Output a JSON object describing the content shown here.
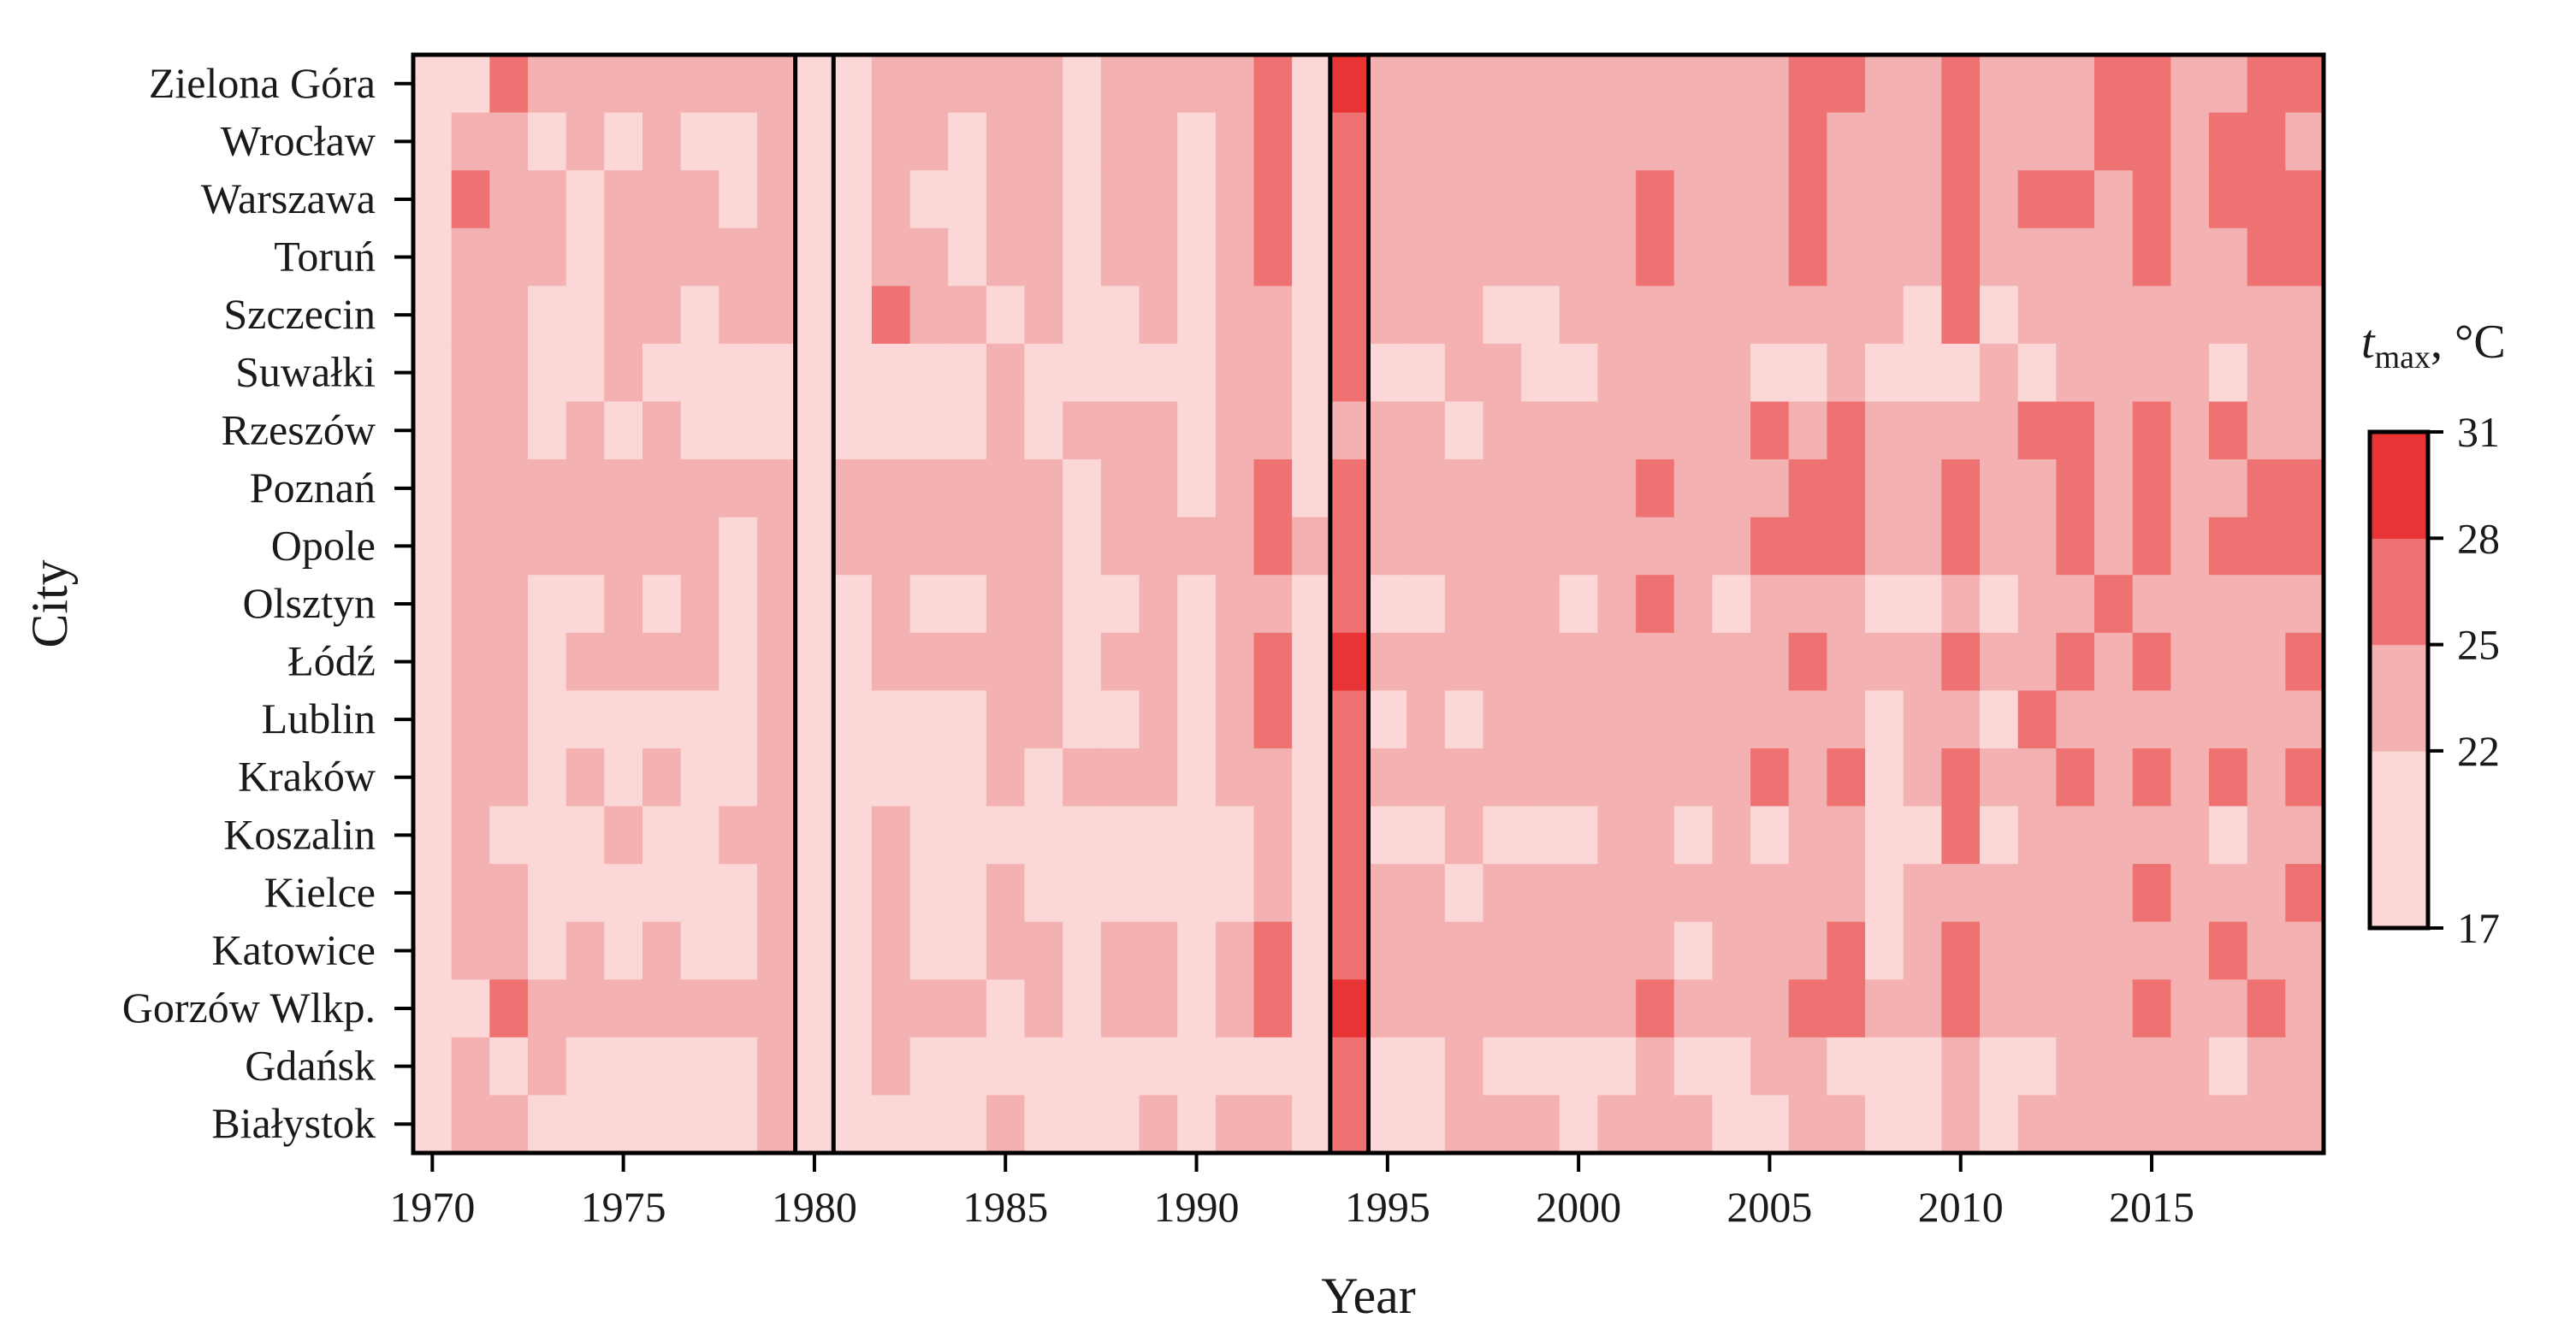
{
  "chart_data": {
    "type": "heatmap",
    "xlabel": "Year",
    "ylabel": "City",
    "x": [
      1970,
      1971,
      1972,
      1973,
      1974,
      1975,
      1976,
      1977,
      1978,
      1979,
      1980,
      1981,
      1982,
      1983,
      1984,
      1985,
      1986,
      1987,
      1988,
      1989,
      1990,
      1991,
      1992,
      1993,
      1994,
      1995,
      1996,
      1997,
      1998,
      1999,
      2000,
      2001,
      2002,
      2003,
      2004,
      2005,
      2006,
      2007,
      2008,
      2009,
      2010,
      2011,
      2012,
      2013,
      2014,
      2015,
      2016,
      2017,
      2018,
      2019
    ],
    "x_ticks": [
      1970,
      1975,
      1980,
      1985,
      1990,
      1995,
      2000,
      2005,
      2010,
      2015
    ],
    "cities": [
      "Zielona Góra",
      "Wrocław",
      "Warszawa",
      "Toruń",
      "Szczecin",
      "Suwałki",
      "Rzeszów",
      "Poznań",
      "Opole",
      "Olsztyn",
      "Łódź",
      "Lublin",
      "Kraków",
      "Koszalin",
      "Kielce",
      "Katowice",
      "Gorzów Wlkp.",
      "Gdańsk",
      "Białystok"
    ],
    "colorbar": {
      "title_main": "t",
      "title_sub": "max",
      "title_unit": ", °C",
      "bins": [
        17,
        22,
        25,
        28,
        31
      ],
      "colors": [
        "#fcd7d7",
        "#f4b1b1",
        "#ee7272",
        "#e83434"
      ]
    },
    "highlighted_years": [
      1980,
      1994
    ],
    "cell_classes": [
      [
        1,
        1,
        3,
        2,
        2,
        2,
        2,
        2,
        2,
        2,
        1,
        1,
        2,
        2,
        2,
        2,
        2,
        1,
        2,
        2,
        2,
        2,
        3,
        1,
        4,
        2,
        2,
        2,
        2,
        2,
        2,
        2,
        2,
        2,
        2,
        2,
        3,
        3,
        2,
        2,
        3,
        2,
        2,
        2,
        3,
        3,
        2,
        2,
        3,
        3
      ],
      [
        1,
        2,
        2,
        1,
        2,
        1,
        2,
        1,
        1,
        2,
        1,
        1,
        2,
        2,
        1,
        2,
        2,
        1,
        2,
        2,
        1,
        2,
        3,
        1,
        3,
        2,
        2,
        2,
        2,
        2,
        2,
        2,
        2,
        2,
        2,
        2,
        3,
        2,
        2,
        2,
        3,
        2,
        2,
        2,
        3,
        3,
        2,
        3,
        3,
        2
      ],
      [
        1,
        3,
        2,
        2,
        1,
        2,
        2,
        2,
        1,
        2,
        1,
        1,
        2,
        1,
        1,
        2,
        2,
        1,
        2,
        2,
        1,
        2,
        3,
        1,
        3,
        2,
        2,
        2,
        2,
        2,
        2,
        2,
        3,
        2,
        2,
        2,
        3,
        2,
        2,
        2,
        3,
        2,
        3,
        3,
        2,
        3,
        2,
        3,
        3,
        3
      ],
      [
        1,
        2,
        2,
        2,
        1,
        2,
        2,
        2,
        2,
        2,
        1,
        1,
        2,
        2,
        1,
        2,
        2,
        1,
        2,
        2,
        1,
        2,
        3,
        1,
        3,
        2,
        2,
        2,
        2,
        2,
        2,
        2,
        3,
        2,
        2,
        2,
        3,
        2,
        2,
        2,
        3,
        2,
        2,
        2,
        2,
        3,
        2,
        2,
        3,
        3
      ],
      [
        1,
        2,
        2,
        1,
        1,
        2,
        2,
        1,
        2,
        2,
        1,
        1,
        3,
        2,
        2,
        1,
        2,
        1,
        1,
        2,
        1,
        2,
        2,
        1,
        3,
        2,
        2,
        2,
        1,
        1,
        2,
        2,
        2,
        2,
        2,
        2,
        2,
        2,
        2,
        1,
        3,
        1,
        2,
        2,
        2,
        2,
        2,
        2,
        2,
        2
      ],
      [
        1,
        2,
        2,
        1,
        1,
        2,
        1,
        1,
        1,
        1,
        1,
        1,
        1,
        1,
        1,
        2,
        1,
        1,
        1,
        1,
        1,
        2,
        2,
        1,
        3,
        1,
        1,
        2,
        2,
        1,
        1,
        2,
        2,
        2,
        2,
        1,
        1,
        2,
        1,
        1,
        1,
        2,
        1,
        2,
        2,
        2,
        2,
        1,
        2,
        2
      ],
      [
        1,
        2,
        2,
        1,
        2,
        1,
        2,
        1,
        1,
        1,
        1,
        1,
        1,
        1,
        1,
        2,
        1,
        2,
        2,
        2,
        1,
        2,
        2,
        1,
        2,
        2,
        2,
        1,
        2,
        2,
        2,
        2,
        2,
        2,
        2,
        3,
        2,
        3,
        2,
        2,
        2,
        2,
        3,
        3,
        2,
        3,
        2,
        3,
        2,
        2
      ],
      [
        1,
        2,
        2,
        2,
        2,
        2,
        2,
        2,
        2,
        2,
        1,
        2,
        2,
        2,
        2,
        2,
        2,
        1,
        2,
        2,
        1,
        2,
        3,
        1,
        3,
        2,
        2,
        2,
        2,
        2,
        2,
        2,
        3,
        2,
        2,
        2,
        3,
        3,
        2,
        2,
        3,
        2,
        2,
        3,
        2,
        3,
        2,
        2,
        3,
        3
      ],
      [
        1,
        2,
        2,
        2,
        2,
        2,
        2,
        2,
        1,
        2,
        1,
        2,
        2,
        2,
        2,
        2,
        2,
        1,
        2,
        2,
        2,
        2,
        3,
        2,
        3,
        2,
        2,
        2,
        2,
        2,
        2,
        2,
        2,
        2,
        2,
        3,
        3,
        3,
        2,
        2,
        3,
        2,
        2,
        3,
        2,
        3,
        2,
        3,
        3,
        3
      ],
      [
        1,
        2,
        2,
        1,
        1,
        2,
        1,
        2,
        1,
        2,
        1,
        1,
        2,
        1,
        1,
        2,
        2,
        1,
        1,
        2,
        1,
        2,
        2,
        1,
        3,
        1,
        1,
        2,
        2,
        2,
        1,
        2,
        3,
        2,
        1,
        2,
        2,
        2,
        1,
        1,
        2,
        1,
        2,
        2,
        3,
        2,
        2,
        2,
        2,
        2
      ],
      [
        1,
        2,
        2,
        1,
        2,
        2,
        2,
        2,
        1,
        2,
        1,
        1,
        2,
        2,
        2,
        2,
        2,
        1,
        2,
        2,
        1,
        2,
        3,
        1,
        4,
        2,
        2,
        2,
        2,
        2,
        2,
        2,
        2,
        2,
        2,
        2,
        3,
        2,
        2,
        2,
        3,
        2,
        2,
        3,
        2,
        3,
        2,
        2,
        2,
        3
      ],
      [
        1,
        2,
        2,
        1,
        1,
        1,
        1,
        1,
        1,
        2,
        1,
        1,
        1,
        1,
        1,
        2,
        2,
        1,
        1,
        2,
        1,
        2,
        3,
        1,
        3,
        1,
        2,
        1,
        2,
        2,
        2,
        2,
        2,
        2,
        2,
        2,
        2,
        2,
        1,
        2,
        2,
        1,
        3,
        2,
        2,
        2,
        2,
        2,
        2,
        2
      ],
      [
        1,
        2,
        2,
        1,
        2,
        1,
        2,
        1,
        1,
        2,
        1,
        1,
        1,
        1,
        1,
        2,
        1,
        2,
        2,
        2,
        1,
        2,
        2,
        1,
        3,
        2,
        2,
        2,
        2,
        2,
        2,
        2,
        2,
        2,
        2,
        3,
        2,
        3,
        1,
        2,
        3,
        2,
        2,
        3,
        2,
        3,
        2,
        3,
        2,
        3
      ],
      [
        1,
        2,
        1,
        1,
        1,
        2,
        1,
        1,
        2,
        2,
        1,
        1,
        2,
        1,
        1,
        1,
        1,
        1,
        1,
        1,
        1,
        1,
        2,
        1,
        3,
        1,
        1,
        2,
        1,
        1,
        1,
        2,
        2,
        1,
        2,
        1,
        2,
        2,
        1,
        1,
        3,
        1,
        2,
        2,
        2,
        2,
        2,
        1,
        2,
        2
      ],
      [
        1,
        2,
        2,
        1,
        1,
        1,
        1,
        1,
        1,
        2,
        1,
        1,
        2,
        1,
        1,
        2,
        1,
        1,
        1,
        1,
        1,
        1,
        2,
        1,
        3,
        2,
        2,
        1,
        2,
        2,
        2,
        2,
        2,
        2,
        2,
        2,
        2,
        2,
        1,
        2,
        2,
        2,
        2,
        2,
        2,
        3,
        2,
        2,
        2,
        3
      ],
      [
        1,
        2,
        2,
        1,
        2,
        1,
        2,
        1,
        1,
        2,
        1,
        1,
        2,
        1,
        1,
        2,
        2,
        1,
        2,
        2,
        1,
        2,
        3,
        1,
        3,
        2,
        2,
        2,
        2,
        2,
        2,
        2,
        2,
        1,
        2,
        2,
        2,
        3,
        1,
        2,
        3,
        2,
        2,
        2,
        2,
        2,
        2,
        3,
        2,
        2
      ],
      [
        1,
        1,
        3,
        2,
        2,
        2,
        2,
        2,
        2,
        2,
        1,
        1,
        2,
        2,
        2,
        1,
        2,
        1,
        2,
        2,
        1,
        2,
        3,
        1,
        4,
        2,
        2,
        2,
        2,
        2,
        2,
        2,
        3,
        2,
        2,
        2,
        3,
        3,
        2,
        2,
        3,
        2,
        2,
        2,
        2,
        3,
        2,
        2,
        3,
        2
      ],
      [
        1,
        2,
        1,
        2,
        1,
        1,
        1,
        1,
        1,
        2,
        1,
        1,
        2,
        1,
        1,
        1,
        1,
        1,
        1,
        1,
        1,
        1,
        1,
        1,
        3,
        1,
        1,
        2,
        1,
        1,
        1,
        1,
        2,
        1,
        1,
        2,
        2,
        1,
        1,
        1,
        2,
        1,
        1,
        2,
        2,
        2,
        2,
        1,
        2,
        2
      ],
      [
        1,
        2,
        2,
        1,
        1,
        1,
        1,
        1,
        1,
        2,
        1,
        1,
        1,
        1,
        1,
        2,
        1,
        1,
        1,
        2,
        1,
        2,
        2,
        1,
        3,
        1,
        1,
        2,
        2,
        2,
        1,
        2,
        2,
        2,
        1,
        1,
        2,
        2,
        1,
        1,
        2,
        1,
        2,
        2,
        2,
        2,
        2,
        2,
        2,
        2
      ]
    ]
  }
}
